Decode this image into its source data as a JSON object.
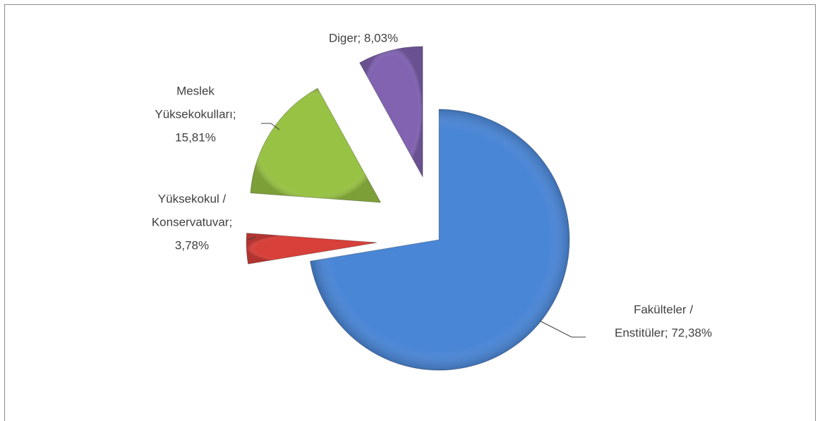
{
  "chart_data": {
    "type": "pie",
    "values": [
      72.38,
      3.78,
      15.81,
      8.03
    ],
    "value_labels": [
      [
        "Fakülteler /",
        "Enstitüler; 72,38%"
      ],
      [
        "Yüksekokul /",
        "Konservatuvar;",
        "3,78%"
      ],
      [
        "Meslek",
        "Yüksekokulları;",
        "15,81%"
      ],
      [
        "Diger; 8,03%"
      ]
    ],
    "colors": [
      "#4a86d6",
      "#d8403a",
      "#98c244",
      "#8163b2"
    ]
  }
}
